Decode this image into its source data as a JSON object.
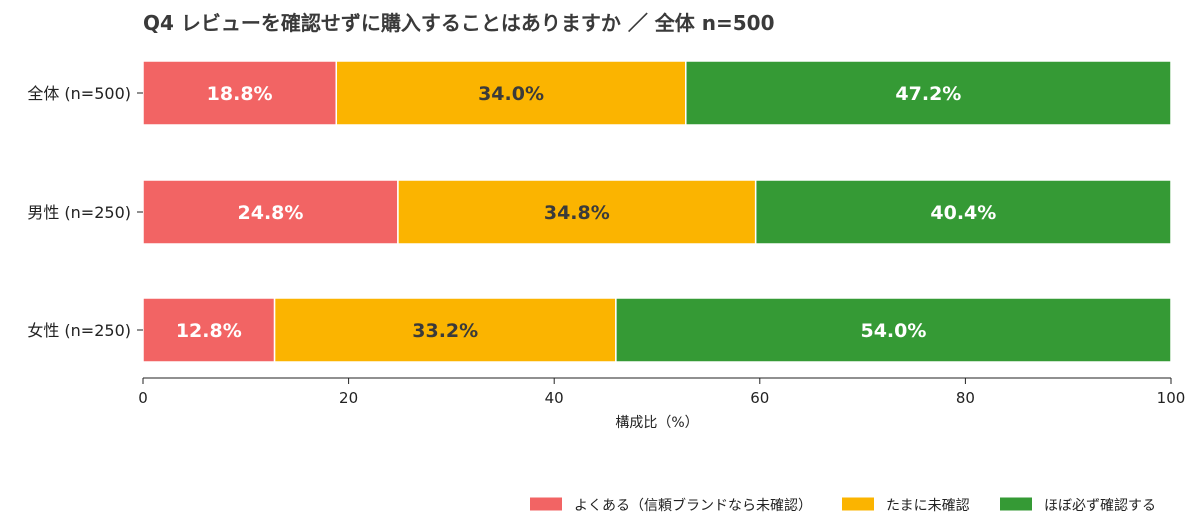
{
  "chart_data": {
    "type": "bar",
    "orientation": "horizontal",
    "stacked": true,
    "title": "Q4 レビューを確認せずに購入することはありますか ／ 全体 n=500",
    "xlabel": "構成比（%）",
    "ylabel": "",
    "xlim": [
      0,
      100
    ],
    "xticks": [
      0,
      20,
      40,
      60,
      80,
      100
    ],
    "grid": false,
    "legend_position": "bottom-right",
    "categories": [
      "全体 (n=500)",
      "男性 (n=250)",
      "女性 (n=250)"
    ],
    "series": [
      {
        "name": "よくある（信頼ブランドなら未確認）",
        "color": "#f26464",
        "label_color": "#ffffff",
        "values": [
          18.8,
          24.8,
          12.8
        ],
        "labels": [
          "18.8%",
          "24.8%",
          "12.8%"
        ]
      },
      {
        "name": "たまに未確認",
        "color": "#fbb400",
        "label_color": "#3a3a3a",
        "values": [
          34.0,
          34.8,
          33.2
        ],
        "labels": [
          "34.0%",
          "34.8%",
          "33.2%"
        ]
      },
      {
        "name": "ほぼ必ず確認する",
        "color": "#359a35",
        "label_color": "#ffffff",
        "values": [
          47.2,
          40.4,
          54.0
        ],
        "labels": [
          "47.2%",
          "40.4%",
          "54.0%"
        ]
      }
    ]
  }
}
